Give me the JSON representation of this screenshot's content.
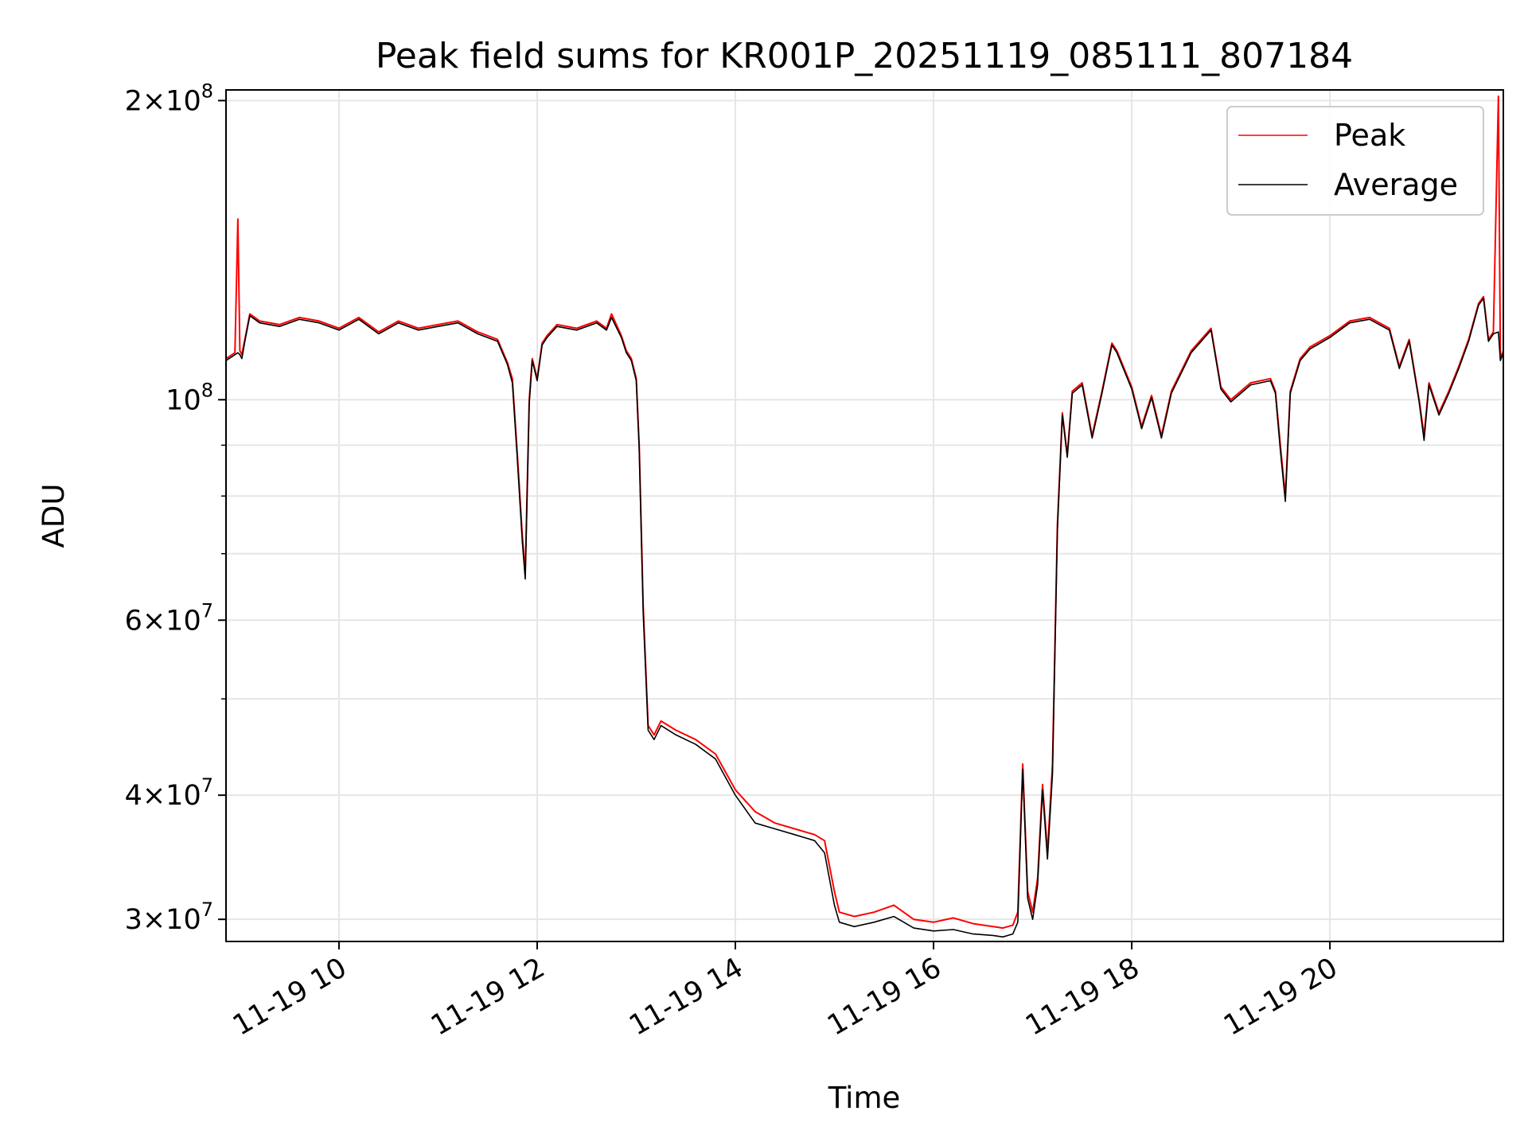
{
  "chart_data": {
    "type": "line",
    "title": "Peak field sums for KR001P_20251119_085111_807184",
    "xlabel": "Time",
    "ylabel": "ADU",
    "yscale": "log",
    "ylim": [
      28500000,
      205000000
    ],
    "xlim_hours": [
      8.86,
      21.75
    ],
    "grid": true,
    "legend_position": "top-right",
    "x_ticks": [
      {
        "hour": 10,
        "label": "11-19 10"
      },
      {
        "hour": 12,
        "label": "11-19 12"
      },
      {
        "hour": 14,
        "label": "11-19 14"
      },
      {
        "hour": 16,
        "label": "11-19 16"
      },
      {
        "hour": 18,
        "label": "11-19 18"
      },
      {
        "hour": 20,
        "label": "11-19 20"
      }
    ],
    "y_major_ticks": [
      {
        "value": 30000000,
        "mantissa": "3",
        "base": "×10",
        "exp": "7"
      },
      {
        "value": 40000000,
        "mantissa": "4",
        "base": "×10",
        "exp": "7"
      },
      {
        "value": 60000000,
        "mantissa": "6",
        "base": "×10",
        "exp": "7"
      },
      {
        "value": 100000000,
        "mantissa": "",
        "base": "10",
        "exp": "8"
      },
      {
        "value": 200000000,
        "mantissa": "2",
        "base": "×10",
        "exp": "8"
      }
    ],
    "y_minor_ticks": [
      50000000,
      70000000,
      80000000,
      90000000
    ],
    "x_units": "hour of day, 2025-11-19",
    "series": [
      {
        "name": "Peak",
        "color": "#ff0000",
        "x": [
          8.86,
          8.95,
          8.98,
          9.0,
          9.02,
          9.05,
          9.1,
          9.2,
          9.4,
          9.6,
          9.8,
          10.0,
          10.2,
          10.4,
          10.6,
          10.8,
          11.0,
          11.2,
          11.4,
          11.6,
          11.7,
          11.75,
          11.8,
          11.85,
          11.88,
          11.92,
          11.95,
          12.0,
          12.05,
          12.1,
          12.2,
          12.4,
          12.6,
          12.7,
          12.75,
          12.85,
          12.9,
          12.95,
          13.0,
          13.03,
          13.07,
          13.12,
          13.18,
          13.25,
          13.4,
          13.6,
          13.8,
          14.0,
          14.2,
          14.4,
          14.6,
          14.8,
          14.9,
          15.0,
          15.05,
          15.2,
          15.4,
          15.6,
          15.8,
          16.0,
          16.2,
          16.4,
          16.6,
          16.7,
          16.8,
          16.85,
          16.9,
          16.95,
          17.0,
          17.05,
          17.1,
          17.15,
          17.2,
          17.25,
          17.3,
          17.35,
          17.4,
          17.5,
          17.6,
          17.7,
          17.8,
          17.85,
          18.0,
          18.1,
          18.2,
          18.3,
          18.4,
          18.6,
          18.8,
          18.9,
          19.0,
          19.2,
          19.4,
          19.45,
          19.5,
          19.55,
          19.6,
          19.7,
          19.8,
          20.0,
          20.2,
          20.4,
          20.6,
          20.7,
          20.8,
          20.9,
          20.95,
          21.0,
          21.1,
          21.2,
          21.3,
          21.4,
          21.5,
          21.55,
          21.6,
          21.65,
          21.7,
          21.72,
          21.75
        ],
        "values": [
          110000000,
          111500000,
          152000000,
          112000000,
          111000000,
          115000000,
          122000000,
          120000000,
          119000000,
          121000000,
          120000000,
          118000000,
          121000000,
          117000000,
          120000000,
          118000000,
          119000000,
          120000000,
          117000000,
          115000000,
          109000000,
          105000000,
          88000000,
          73000000,
          67000000,
          100000000,
          110000000,
          105000000,
          114000000,
          116000000,
          119000000,
          118000000,
          120000000,
          118000000,
          122000000,
          116000000,
          112000000,
          110000000,
          105000000,
          90000000,
          62000000,
          47000000,
          46000000,
          47500000,
          46500000,
          45500000,
          44000000,
          40500000,
          38500000,
          37500000,
          37000000,
          36500000,
          36000000,
          32000000,
          30500000,
          30200000,
          30500000,
          31000000,
          30000000,
          29800000,
          30100000,
          29700000,
          29500000,
          29400000,
          29600000,
          30500000,
          43000000,
          32000000,
          30500000,
          33000000,
          41000000,
          35000000,
          43000000,
          75000000,
          97000000,
          88000000,
          102000000,
          104000000,
          92000000,
          102000000,
          114000000,
          112000000,
          103000000,
          94000000,
          101000000,
          92000000,
          102000000,
          112000000,
          118000000,
          103000000,
          100000000,
          104000000,
          105000000,
          102000000,
          90000000,
          80000000,
          102000000,
          110000000,
          113000000,
          116000000,
          120000000,
          121000000,
          118000000,
          108000000,
          115000000,
          100000000,
          92000000,
          104000000,
          97000000,
          102000000,
          108000000,
          115000000,
          125000000,
          127000000,
          115000000,
          117000000,
          202000000,
          110000000,
          112000000
        ]
      },
      {
        "name": "Average",
        "color": "#000000",
        "x": [
          8.86,
          8.95,
          8.98,
          9.0,
          9.02,
          9.05,
          9.1,
          9.2,
          9.4,
          9.6,
          9.8,
          10.0,
          10.2,
          10.4,
          10.6,
          10.8,
          11.0,
          11.2,
          11.4,
          11.6,
          11.7,
          11.75,
          11.8,
          11.85,
          11.88,
          11.92,
          11.95,
          12.0,
          12.05,
          12.1,
          12.2,
          12.4,
          12.6,
          12.7,
          12.75,
          12.85,
          12.9,
          12.95,
          13.0,
          13.03,
          13.07,
          13.12,
          13.18,
          13.25,
          13.4,
          13.6,
          13.8,
          14.0,
          14.2,
          14.4,
          14.6,
          14.8,
          14.9,
          15.0,
          15.05,
          15.2,
          15.4,
          15.6,
          15.8,
          16.0,
          16.2,
          16.4,
          16.6,
          16.7,
          16.8,
          16.85,
          16.9,
          16.95,
          17.0,
          17.05,
          17.1,
          17.15,
          17.2,
          17.25,
          17.3,
          17.35,
          17.4,
          17.5,
          17.6,
          17.7,
          17.8,
          17.85,
          18.0,
          18.1,
          18.2,
          18.3,
          18.4,
          18.6,
          18.8,
          18.9,
          19.0,
          19.2,
          19.4,
          19.45,
          19.5,
          19.55,
          19.6,
          19.7,
          19.8,
          20.0,
          20.2,
          20.4,
          20.6,
          20.7,
          20.8,
          20.9,
          20.95,
          21.0,
          21.1,
          21.2,
          21.3,
          21.4,
          21.5,
          21.55,
          21.6,
          21.65,
          21.7,
          21.72,
          21.75
        ],
        "values": [
          109500000,
          111000000,
          111500000,
          111000000,
          110000000,
          114500000,
          121500000,
          119500000,
          118500000,
          120500000,
          119500000,
          117500000,
          120500000,
          116500000,
          119500000,
          117500000,
          118500000,
          119500000,
          116500000,
          114500000,
          108500000,
          104000000,
          87000000,
          72000000,
          66000000,
          99000000,
          109500000,
          104500000,
          113500000,
          115500000,
          118500000,
          117500000,
          119500000,
          117500000,
          121000000,
          115500000,
          111500000,
          109500000,
          104500000,
          89000000,
          61000000,
          46500000,
          45500000,
          47000000,
          46000000,
          45000000,
          43500000,
          40000000,
          37500000,
          37000000,
          36500000,
          36000000,
          35000000,
          31000000,
          29800000,
          29500000,
          29800000,
          30200000,
          29400000,
          29200000,
          29300000,
          29000000,
          28900000,
          28800000,
          29000000,
          29800000,
          42500000,
          31500000,
          30000000,
          32500000,
          40500000,
          34500000,
          42000000,
          74000000,
          96500000,
          87500000,
          101500000,
          103500000,
          91500000,
          101500000,
          113500000,
          111500000,
          102500000,
          93500000,
          100500000,
          91500000,
          101500000,
          111500000,
          117500000,
          102500000,
          99500000,
          103500000,
          104500000,
          101500000,
          89000000,
          79000000,
          101500000,
          109500000,
          112500000,
          115500000,
          119500000,
          120500000,
          117500000,
          107500000,
          114500000,
          99500000,
          91000000,
          103500000,
          96500000,
          101500000,
          107500000,
          114500000,
          124500000,
          126500000,
          114500000,
          116500000,
          117000000,
          109500000,
          111500000
        ]
      }
    ]
  }
}
